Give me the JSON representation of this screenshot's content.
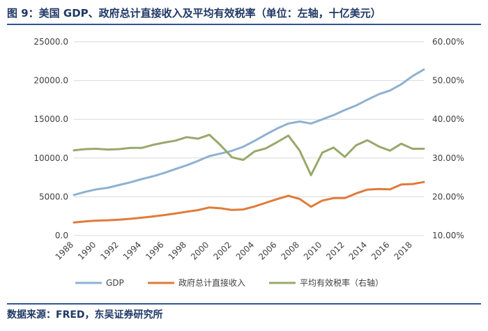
{
  "header": {
    "title": "图 9：美国 GDP、政府总计直接收入及平均有效税率（单位：左轴，十亿美元）"
  },
  "footer": {
    "source": "数据来源：FRED，东吴证券研究所"
  },
  "colors": {
    "gdp": "#8eb1d1",
    "revenue": "#e07b39",
    "tax_rate": "#98a86c",
    "grid": "#d9d9d9"
  },
  "chart_data": {
    "type": "line",
    "title": "美国 GDP、政府总计直接收入及平均有效税率",
    "x": [
      1988,
      1989,
      1990,
      1991,
      1992,
      1993,
      1994,
      1995,
      1996,
      1997,
      1998,
      1999,
      2000,
      2001,
      2002,
      2003,
      2004,
      2005,
      2006,
      2007,
      2008,
      2009,
      2010,
      2011,
      2012,
      2013,
      2014,
      2015,
      2016,
      2017,
      2018,
      2019
    ],
    "x_tick_labels": [
      "1988",
      "1990",
      "1992",
      "1994",
      "1996",
      "1998",
      "2000",
      "2002",
      "2004",
      "2006",
      "2008",
      "2010",
      "2012",
      "2014",
      "2016",
      "2018"
    ],
    "y_left": {
      "range": [
        0,
        25000
      ],
      "tick_labels": [
        "0.0",
        "5000.0",
        "10000.0",
        "15000.0",
        "20000.0",
        "25000.0"
      ]
    },
    "y_right": {
      "range": [
        10,
        60
      ],
      "tick_labels": [
        "10.00%",
        "20.00%",
        "30.00%",
        "40.00%",
        "50.00%",
        "60.00%"
      ]
    },
    "series": [
      {
        "name": "GDP",
        "axis": "left",
        "color": "#8eb1d1",
        "values": [
          5236,
          5642,
          5963,
          6158,
          6520,
          6859,
          7287,
          7640,
          8073,
          8577,
          9063,
          9631,
          10252,
          10582,
          10936,
          11458,
          12214,
          13037,
          13815,
          14452,
          14713,
          14449,
          14992,
          15543,
          16197,
          16785,
          17527,
          18225,
          18715,
          19519,
          20580,
          21433
        ]
      },
      {
        "name": "政府总计直接收入",
        "axis": "left",
        "color": "#e07b39",
        "values": [
          1690,
          1830,
          1920,
          1970,
          2050,
          2160,
          2300,
          2460,
          2640,
          2840,
          3080,
          3280,
          3620,
          3520,
          3300,
          3360,
          3750,
          4230,
          4700,
          5130,
          4720,
          3710,
          4510,
          4830,
          4830,
          5430,
          5930,
          6000,
          5960,
          6580,
          6650,
          6910
        ]
      },
      {
        "name": "平均有效税率（右轴）",
        "axis": "right",
        "color": "#98a86c",
        "values": [
          32.0,
          32.3,
          32.4,
          32.2,
          32.3,
          32.6,
          32.6,
          33.4,
          34.0,
          34.5,
          35.4,
          35.0,
          36.0,
          33.3,
          30.2,
          29.5,
          31.7,
          32.5,
          34.1,
          35.8,
          31.9,
          25.6,
          31.4,
          32.7,
          30.3,
          33.3,
          34.6,
          33.0,
          31.9,
          33.7,
          32.4,
          32.4
        ]
      }
    ],
    "legend": {
      "position": "bottom",
      "entries": [
        "GDP",
        "政府总计直接收入",
        "平均有效税率（右轴）"
      ]
    },
    "grid": true
  }
}
